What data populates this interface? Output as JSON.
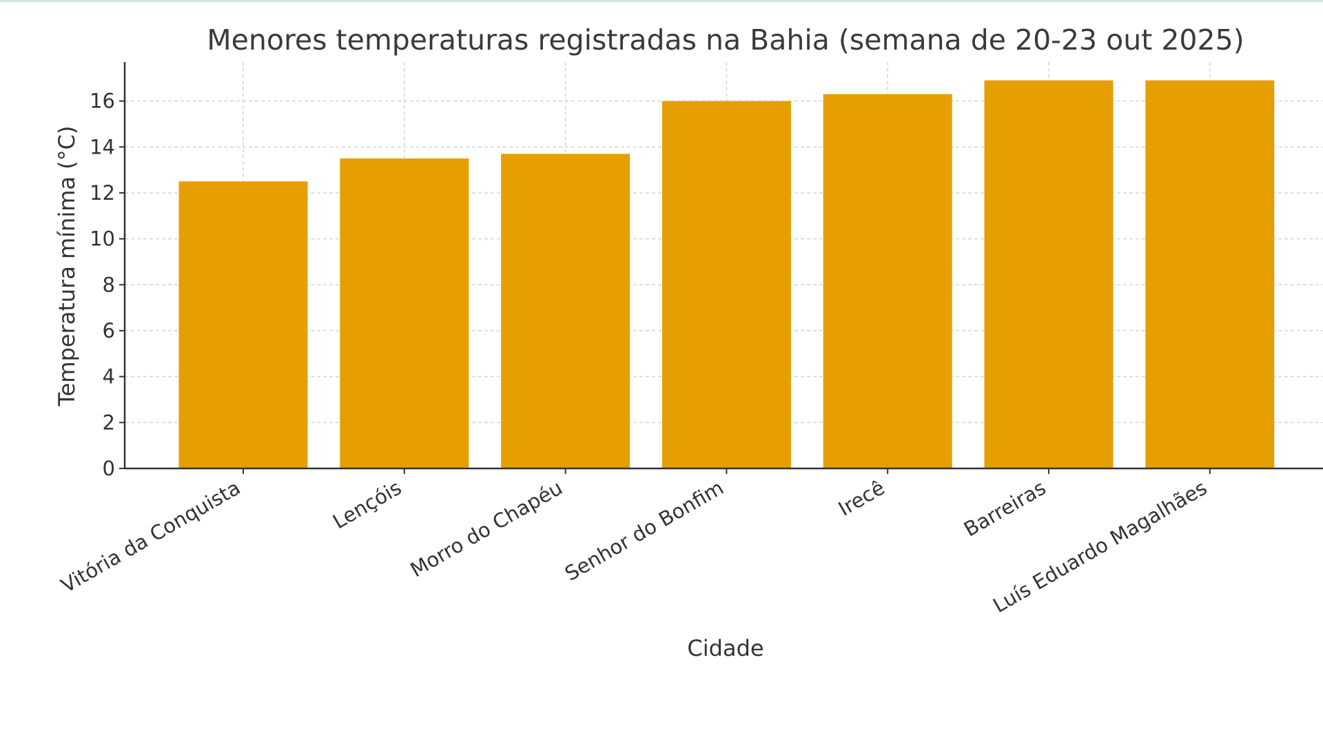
{
  "chart_data": {
    "type": "bar",
    "title": "Menores temperaturas registradas na Bahia (semana de 20-23 out 2025)",
    "xlabel": "Cidade",
    "ylabel": "Temperatura mínima (°C)",
    "categories": [
      "Vitória da Conquista",
      "Lençóis",
      "Morro do Chapéu",
      "Senhor do Bonfim",
      "Irecê",
      "Barreiras",
      "Luís Eduardo Magalhães"
    ],
    "values": [
      12.5,
      13.5,
      13.7,
      16.0,
      16.3,
      16.9,
      16.9
    ],
    "ylim": [
      0,
      17.7
    ],
    "yticks": [
      0,
      2,
      4,
      6,
      8,
      10,
      12,
      14,
      16
    ],
    "bar_color": "#e69f00",
    "grid": true,
    "legend": "none"
  }
}
